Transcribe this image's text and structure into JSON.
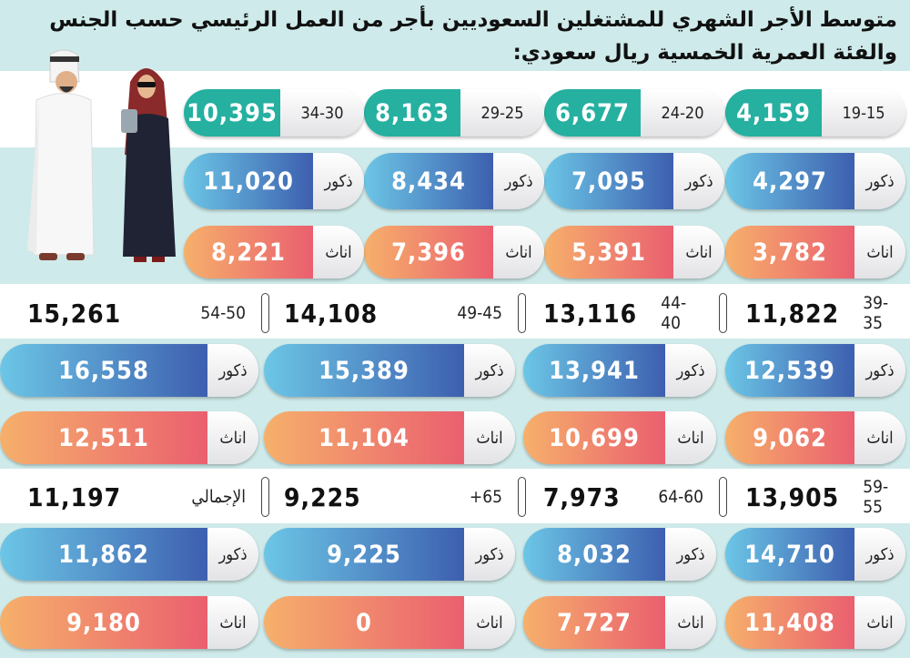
{
  "title": "متوسط الأجر الشهري للمشتغلين السعوديين بأجر من العمل الرئيسي حسب الجنس والفئة العمرية الخمسية ريال سعودي:",
  "labels": {
    "male": "ذكور",
    "female": "اناث"
  },
  "colors": {
    "total_top": "#25b0a0",
    "male": "#3d5faf",
    "female": "#ea5f6f",
    "band": "#cfeaea"
  },
  "chart_data": {
    "type": "table",
    "title": "متوسط الأجر الشهري للمشتغلين السعوديين بأجر من العمل الرئيسي حسب الجنس والفئة العمرية الخمسية ريال سعودي:",
    "columns": [
      "age_group",
      "total",
      "male",
      "female"
    ],
    "rows": [
      {
        "age_group": "19-15",
        "total": "4,159",
        "male": "4,297",
        "female": "3,782"
      },
      {
        "age_group": "24-20",
        "total": "6,677",
        "male": "7,095",
        "female": "5,391"
      },
      {
        "age_group": "29-25",
        "total": "8,163",
        "male": "8,434",
        "female": "7,396"
      },
      {
        "age_group": "34-30",
        "total": "10,395",
        "male": "11,020",
        "female": "8,221"
      },
      {
        "age_group": "39-35",
        "total": "11,822",
        "male": "12,539",
        "female": "9,062"
      },
      {
        "age_group": "44-40",
        "total": "13,116",
        "male": "13,941",
        "female": "10,699"
      },
      {
        "age_group": "49-45",
        "total": "14,108",
        "male": "15,389",
        "female": "11,104"
      },
      {
        "age_group": "54-50",
        "total": "15,261",
        "male": "16,558",
        "female": "12,511"
      },
      {
        "age_group": "59-55",
        "total": "13,905",
        "male": "14,710",
        "female": "11,408"
      },
      {
        "age_group": "64-60",
        "total": "7,973",
        "male": "8,032",
        "female": "7,727"
      },
      {
        "age_group": "+65",
        "total": "9,225",
        "male": "9,225",
        "female": "0"
      },
      {
        "age_group": "الإجمالي",
        "total": "11,197",
        "male": "11,862",
        "female": "9,180"
      }
    ]
  }
}
